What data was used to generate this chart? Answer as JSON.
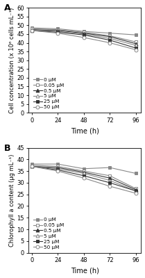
{
  "time": [
    0,
    24,
    48,
    72,
    96
  ],
  "panel_A": {
    "title": "A",
    "ylabel": "Cell concentration (x 10⁶ cells mL⁻¹)",
    "xlabel": "Time (h)",
    "ylim": [
      0,
      60
    ],
    "yticks": [
      0,
      5,
      10,
      15,
      20,
      25,
      30,
      35,
      40,
      45,
      50,
      55,
      60
    ],
    "series": [
      {
        "label": "0 μM",
        "values": [
          48.5,
          48.0,
          46.5,
          45.5,
          44.5
        ],
        "marker": "s",
        "filled": true,
        "dark": false
      },
      {
        "label": "0.05 μM",
        "values": [
          48.0,
          47.5,
          46.0,
          44.0,
          40.5
        ],
        "marker": "s",
        "filled": false,
        "dark": false
      },
      {
        "label": "0.5 μM",
        "values": [
          47.5,
          47.0,
          45.5,
          43.5,
          39.5
        ],
        "marker": "^",
        "filled": true,
        "dark": true
      },
      {
        "label": "5 μM",
        "values": [
          47.0,
          46.5,
          45.0,
          42.5,
          38.5
        ],
        "marker": "^",
        "filled": false,
        "dark": false
      },
      {
        "label": "25 μM",
        "values": [
          47.0,
          46.0,
          44.5,
          41.5,
          37.0
        ],
        "marker": "s",
        "filled": true,
        "dark": true
      },
      {
        "label": "50 μM",
        "values": [
          47.0,
          45.5,
          43.0,
          40.0,
          36.0
        ],
        "marker": "o",
        "filled": false,
        "dark": false
      }
    ]
  },
  "panel_B": {
    "title": "B",
    "ylabel": "Chlorophyll a content (μg mL⁻¹)",
    "xlabel": "Time (h)",
    "ylim": [
      0,
      45
    ],
    "yticks": [
      0,
      5,
      10,
      15,
      20,
      25,
      30,
      35,
      40,
      45
    ],
    "series": [
      {
        "label": "0 μM",
        "values": [
          38.0,
          38.0,
          36.0,
          36.5,
          34.0
        ],
        "marker": "s",
        "filled": true,
        "dark": false
      },
      {
        "label": "0.05 μM",
        "values": [
          37.5,
          37.0,
          35.0,
          33.0,
          27.5
        ],
        "marker": "s",
        "filled": false,
        "dark": false
      },
      {
        "label": "0.5 μM",
        "values": [
          37.0,
          36.5,
          34.5,
          32.0,
          27.0
        ],
        "marker": "^",
        "filled": true,
        "dark": true
      },
      {
        "label": "5 μM",
        "values": [
          37.0,
          36.0,
          34.0,
          31.0,
          26.5
        ],
        "marker": "^",
        "filled": false,
        "dark": false
      },
      {
        "label": "25 μM",
        "values": [
          37.0,
          35.5,
          33.0,
          30.0,
          26.5
        ],
        "marker": "s",
        "filled": true,
        "dark": true
      },
      {
        "label": "50 μM",
        "values": [
          37.0,
          35.0,
          32.0,
          28.5,
          25.5
        ],
        "marker": "o",
        "filled": false,
        "dark": false
      }
    ]
  },
  "line_color_light": "#888888",
  "line_color_dark": "#333333",
  "marker_size": 3.5,
  "linewidth": 0.8
}
